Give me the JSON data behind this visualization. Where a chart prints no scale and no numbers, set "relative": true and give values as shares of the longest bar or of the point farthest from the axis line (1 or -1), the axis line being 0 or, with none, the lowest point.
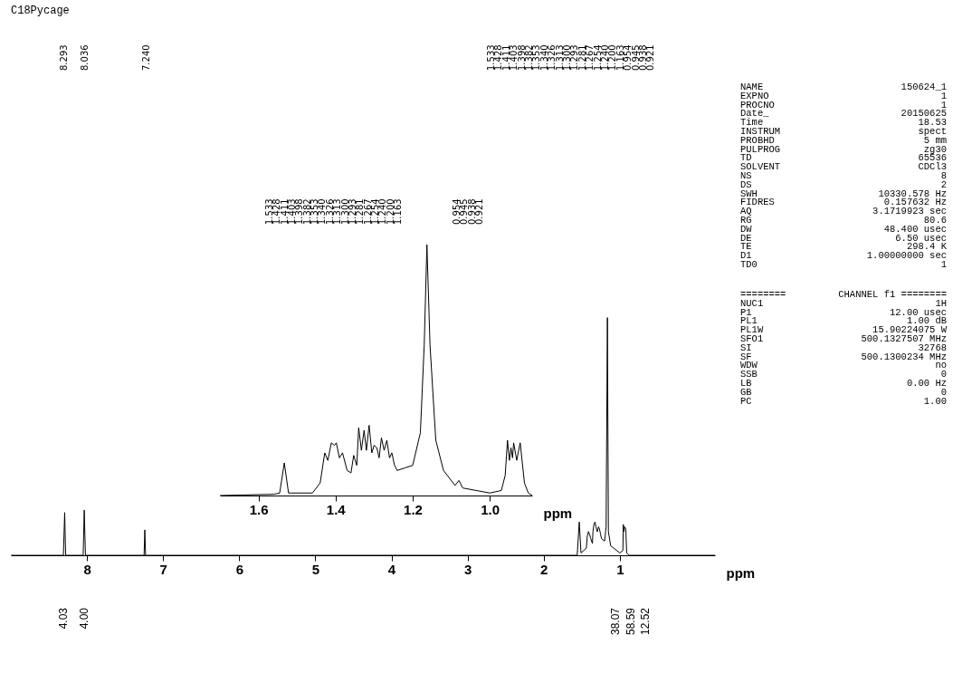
{
  "chart_data": [
    {
      "type": "line",
      "title": "C18Pycage",
      "xlabel": "ppm",
      "relative": true,
      "xlim": [
        9.0,
        -0.25
      ],
      "xticks": [
        8,
        7,
        6,
        5,
        4,
        3,
        2,
        1
      ],
      "series": [
        {
          "color": "#000000",
          "x": [
            9.0,
            8.31,
            8.293,
            8.28,
            8.05,
            8.036,
            8.02,
            7.25,
            7.24,
            7.23,
            3.4,
            1.56,
            1.533,
            1.51,
            1.44,
            1.428,
            1.411,
            1.403,
            1.398,
            1.382,
            1.36,
            1.353,
            1.34,
            1.326,
            1.313,
            1.3,
            1.293,
            1.281,
            1.267,
            1.254,
            1.24,
            1.2,
            1.18,
            1.163,
            1.15,
            1.12,
            1.08,
            1.0,
            0.96,
            0.954,
            0.945,
            0.938,
            0.921,
            0.91,
            0.88,
            -0.25
          ],
          "values": [
            0,
            0,
            0.18,
            0,
            0,
            0.19,
            0,
            0,
            0.107,
            0,
            0,
            0,
            0.14,
            0.01,
            0.03,
            0.08,
            0.1,
            0.09,
            0.09,
            0.07,
            0.05,
            0.1,
            0.13,
            0.14,
            0.12,
            0.1,
            0.1,
            0.12,
            0.11,
            0.09,
            0.07,
            0.06,
            0.12,
            1.0,
            0.1,
            0.04,
            0.03,
            0.01,
            0.02,
            0.13,
            0.1,
            0.12,
            0.11,
            0.01,
            0,
            0
          ]
        }
      ],
      "annotations": [
        "8.293",
        "8.036",
        "7.240",
        "1.533",
        "1.428",
        "1.411",
        "1.403",
        "1.398",
        "1.382",
        "1.353",
        "1.340",
        "1.326",
        "1.313",
        "1.300",
        "1.293",
        "1.281",
        "1.267",
        "1.254",
        "1.240",
        "1.200",
        "1.163",
        "0.954",
        "0.945",
        "0.938",
        "0.921",
        "4.03",
        "4.00",
        "38.07",
        "58.59",
        "12.52"
      ]
    },
    {
      "type": "line",
      "xlabel": "ppm",
      "relative": true,
      "xlim": [
        1.7,
        0.89
      ],
      "xticks": [
        1.6,
        1.4,
        1.2,
        {
          "value": 1.0,
          "label": "1.0"
        }
      ],
      "series": [
        {
          "color": "#000000",
          "x": [
            1.7,
            1.56,
            1.545,
            1.533,
            1.522,
            1.46,
            1.44,
            1.428,
            1.42,
            1.411,
            1.403,
            1.398,
            1.39,
            1.382,
            1.37,
            1.36,
            1.353,
            1.345,
            1.34,
            1.333,
            1.326,
            1.32,
            1.313,
            1.306,
            1.3,
            1.293,
            1.287,
            1.281,
            1.274,
            1.267,
            1.26,
            1.254,
            1.247,
            1.24,
            1.22,
            1.2,
            1.18,
            1.17,
            1.163,
            1.155,
            1.14,
            1.12,
            1.09,
            1.08,
            1.07,
            1.0,
            0.97,
            0.96,
            0.954,
            0.949,
            0.945,
            0.941,
            0.938,
            0.93,
            0.921,
            0.91,
            0.9,
            0.89
          ],
          "values": [
            0,
            0.005,
            0.01,
            0.13,
            0.01,
            0.01,
            0.05,
            0.17,
            0.14,
            0.21,
            0.2,
            0.21,
            0.15,
            0.17,
            0.1,
            0.09,
            0.16,
            0.12,
            0.27,
            0.18,
            0.26,
            0.18,
            0.28,
            0.17,
            0.2,
            0.19,
            0.15,
            0.23,
            0.18,
            0.22,
            0.15,
            0.17,
            0.12,
            0.1,
            0.11,
            0.12,
            0.25,
            0.6,
            1.0,
            0.6,
            0.22,
            0.1,
            0.04,
            0.06,
            0.03,
            0.01,
            0.02,
            0.08,
            0.22,
            0.14,
            0.19,
            0.15,
            0.21,
            0.14,
            0.21,
            0.05,
            0.01,
            0
          ]
        }
      ],
      "annotations": [
        "1.533",
        "1.428",
        "1.411",
        "1.403",
        "1.398",
        "1.382",
        "1.353",
        "1.340",
        "1.326",
        "1.313",
        "1.300",
        "1.293",
        "1.281",
        "1.267",
        "1.254",
        "1.240",
        "1.200",
        "1.163",
        "0.954",
        "0.945",
        "0.938",
        "0.921"
      ]
    },
    {
      "type": "other",
      "annotations": [
        "NAME 150624_1",
        "EXPNO 1",
        "PROCNO 1",
        "Date_ 20150625",
        "Time 18.53",
        "INSTRUM spect",
        "PROBHD 5 mm",
        "PULPROG zg30",
        "TD 65536",
        "SOLVENT CDCl3",
        "NS 8",
        "DS 2",
        "SWH 10330.578 Hz",
        "FIDRES 0.157632 Hz",
        "AQ 3.1719923 sec",
        "RG 80.6",
        "DW 48.400 usec",
        "DE 6.50 usec",
        "TE 298.4 K",
        "D1 1.00000000 sec",
        "TD0 1"
      ]
    },
    {
      "type": "other",
      "annotations": [
        "======== CHANNEL f1 ========",
        "NUC1 1H",
        "P1 12.00 usec",
        "PL1 1.00 dB",
        "PL1W 15.90224075 W",
        "SFO1 500.1327507 MHz",
        "SI 32768",
        "SF 500.1300234 MHz",
        "WDW no",
        "SSB 0",
        "LB 0.00 Hz",
        "GB 0",
        "PC 1.00"
      ]
    }
  ]
}
